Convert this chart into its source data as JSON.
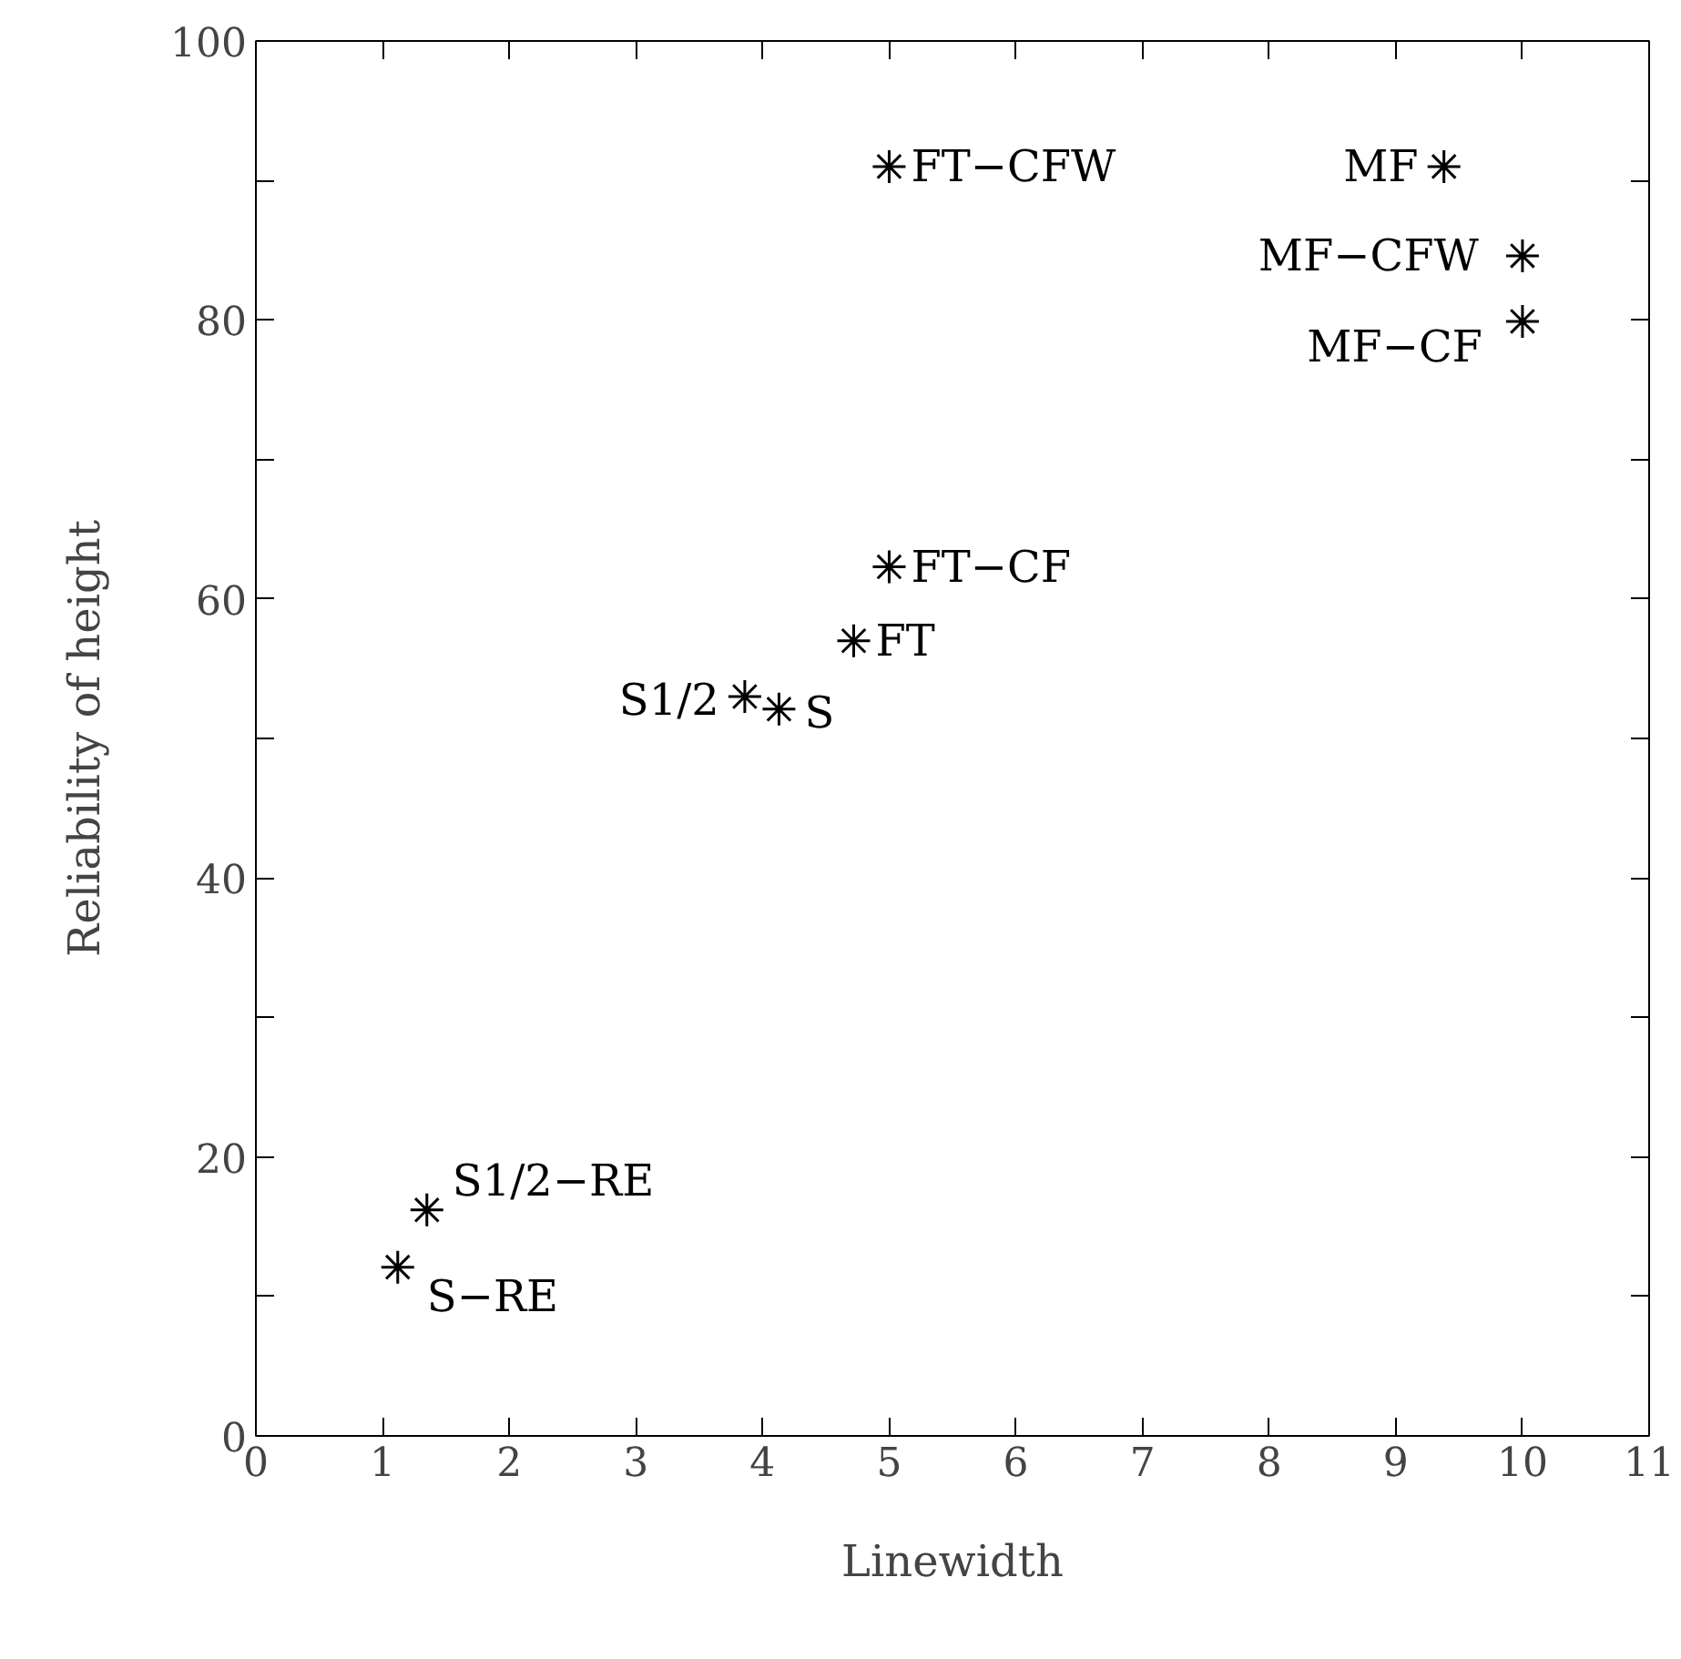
{
  "chart_data": {
    "type": "scatter",
    "xlabel": "Linewidth",
    "ylabel": "Reliability of height",
    "xlim": [
      0,
      11
    ],
    "ylim": [
      0,
      100
    ],
    "xticks": [
      0,
      1,
      2,
      3,
      4,
      5,
      6,
      7,
      8,
      9,
      10,
      11
    ],
    "yticks": [
      0,
      {
        "value": 10,
        "label": null
      },
      20,
      {
        "value": 30,
        "label": null
      },
      40,
      {
        "value": 50,
        "label": null
      },
      60,
      {
        "value": 70,
        "label": null
      },
      80,
      {
        "value": 90,
        "label": null
      },
      100
    ],
    "marker": "cross",
    "grid": false,
    "series": [
      {
        "color": "#000000",
        "x": [
          5.0,
          9.38,
          10.0,
          10.0,
          5.0,
          4.72,
          3.86,
          4.13,
          1.35,
          1.12
        ],
        "values": [
          91.0,
          91.0,
          84.6,
          79.9,
          62.3,
          57.0,
          53.0,
          52.1,
          16.2,
          12.1
        ]
      }
    ],
    "annotations": [
      {
        "text": "FT−CFW",
        "x": 5.0,
        "y": 91.0
      },
      {
        "text": "MF",
        "x": 9.38,
        "y": 91.0
      },
      {
        "text": "MF−CFW",
        "x": 10.0,
        "y": 84.6
      },
      {
        "text": "MF−CF",
        "x": 10.0,
        "y": 79.9
      },
      {
        "text": "FT−CF",
        "x": 5.0,
        "y": 62.3
      },
      {
        "text": "FT",
        "x": 4.72,
        "y": 57.0
      },
      {
        "text": "S1/2",
        "x": 3.86,
        "y": 53.0
      },
      {
        "text": "S",
        "x": 4.13,
        "y": 52.1
      },
      {
        "text": "S1/2−RE",
        "x": 1.35,
        "y": 16.2
      },
      {
        "text": "S−RE",
        "x": 1.12,
        "y": 12.1
      }
    ]
  }
}
